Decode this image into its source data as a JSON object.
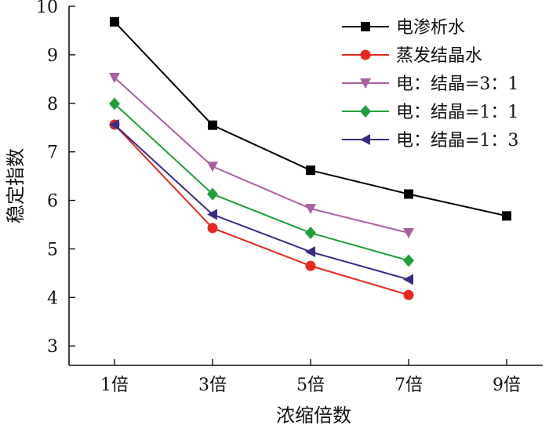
{
  "chart_data": {
    "type": "line",
    "title": "",
    "xlabel": "浓缩倍数",
    "ylabel": "稳定指数",
    "categories": [
      "1倍",
      "3倍",
      "5倍",
      "7倍",
      "9倍"
    ],
    "ylim": [
      2.6,
      10
    ],
    "yticks": [
      3,
      4,
      5,
      6,
      7,
      8,
      9,
      10
    ],
    "grid": false,
    "legend_position": "top-right",
    "series": [
      {
        "name": "电渗析水",
        "marker": "square",
        "color": "#000000",
        "values": [
          9.68,
          7.55,
          6.62,
          6.13,
          5.68
        ]
      },
      {
        "name": "蒸发结晶水",
        "marker": "circle",
        "color": "#e8281e",
        "values": [
          7.56,
          5.43,
          4.65,
          4.05,
          null
        ]
      },
      {
        "name": "电：结晶=3：1",
        "marker": "triangle-down",
        "color": "#a8619e",
        "values": [
          8.53,
          6.7,
          5.83,
          5.33,
          null
        ]
      },
      {
        "name": "电：结晶=1：1",
        "marker": "diamond",
        "color": "#1fa03c",
        "values": [
          7.99,
          6.13,
          5.33,
          4.76,
          null
        ]
      },
      {
        "name": "电：结晶=1：3",
        "marker": "triangle-left",
        "color": "#3a2a86",
        "values": [
          7.56,
          5.71,
          4.94,
          4.37,
          null
        ]
      }
    ]
  }
}
